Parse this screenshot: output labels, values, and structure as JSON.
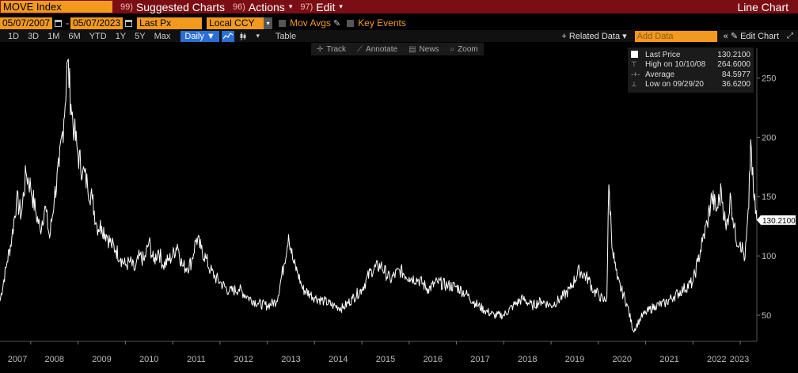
{
  "header": {
    "ticker": "MOVE Index",
    "buttons": [
      {
        "num": "99)",
        "label": "Suggested Charts",
        "caret": ""
      },
      {
        "num": "96)",
        "label": "Actions",
        "caret": "▾"
      },
      {
        "num": "97)",
        "label": "Edit",
        "caret": "▾"
      }
    ],
    "title": "Line Chart"
  },
  "controls": {
    "start_date": "05/07/2007",
    "end_date": "05/07/2023",
    "field": "Last Px",
    "currency": "Local CCY",
    "mov_avgs": "Mov Avgs",
    "key_events": "Key Events"
  },
  "toolbar": {
    "periods": [
      "1D",
      "3D",
      "1M",
      "6M",
      "YTD",
      "1Y",
      "5Y",
      "Max"
    ],
    "frequency": "Daily ▼",
    "table": "Table",
    "related": "+ Related Data ▾",
    "add_data_placeholder": "Add Data",
    "edit_chart": "« ✎ Edit Chart",
    "expand": "⤢"
  },
  "tools": [
    "Track",
    "Annotate",
    "News",
    "Zoom"
  ],
  "legend": {
    "rows": [
      {
        "label": "Last Price",
        "value": "130.2100"
      },
      {
        "label": "High on 10/10/08",
        "value": "264.6000"
      },
      {
        "label": "Average",
        "value": "84.5977"
      },
      {
        "label": "Low on 09/29/20",
        "value": "36.6200"
      }
    ]
  },
  "colors": {
    "line": "#ffffff",
    "accent": "#f39a1e",
    "header": "#7a0e14",
    "selected": "#2b6fd6"
  },
  "chart_data": {
    "type": "line",
    "series": [
      {
        "name": "Last Price",
        "x": [
          2007.35,
          2007.5,
          2007.6,
          2007.7,
          2007.8,
          2007.9,
          2008.0,
          2008.1,
          2008.2,
          2008.3,
          2008.4,
          2008.5,
          2008.6,
          2008.7,
          2008.78,
          2008.85,
          2008.92,
          2009.0,
          2009.1,
          2009.2,
          2009.3,
          2009.4,
          2009.5,
          2009.6,
          2009.7,
          2009.8,
          2009.9,
          2010.0,
          2010.1,
          2010.2,
          2010.3,
          2010.4,
          2010.5,
          2010.6,
          2010.7,
          2010.8,
          2010.9,
          2011.0,
          2011.1,
          2011.2,
          2011.3,
          2011.4,
          2011.5,
          2011.6,
          2011.7,
          2011.8,
          2011.9,
          2012.0,
          2012.2,
          2012.4,
          2012.6,
          2012.8,
          2013.0,
          2013.2,
          2013.35,
          2013.45,
          2013.55,
          2013.65,
          2013.75,
          2013.9,
          2014.0,
          2014.2,
          2014.4,
          2014.6,
          2014.8,
          2015.0,
          2015.2,
          2015.4,
          2015.6,
          2015.8,
          2016.0,
          2016.2,
          2016.4,
          2016.6,
          2016.8,
          2017.0,
          2017.2,
          2017.4,
          2017.6,
          2017.8,
          2018.0,
          2018.2,
          2018.4,
          2018.6,
          2018.8,
          2019.0,
          2019.2,
          2019.4,
          2019.6,
          2019.8,
          2019.9,
          2020.0,
          2020.1,
          2020.18,
          2020.22,
          2020.3,
          2020.4,
          2020.6,
          2020.74,
          2020.9,
          2021.0,
          2021.2,
          2021.4,
          2021.6,
          2021.8,
          2022.0,
          2022.1,
          2022.2,
          2022.3,
          2022.4,
          2022.5,
          2022.6,
          2022.7,
          2022.8,
          2022.9,
          2023.0,
          2023.1,
          2023.18,
          2023.22,
          2023.28,
          2023.35
        ],
        "y": [
          62,
          95,
          115,
          148,
          135,
          170,
          158,
          138,
          122,
          142,
          115,
          150,
          175,
          215,
          264.6,
          228,
          205,
          185,
          172,
          160,
          148,
          125,
          125,
          118,
          110,
          105,
          98,
          92,
          95,
          88,
          100,
          96,
          112,
          95,
          105,
          92,
          96,
          100,
          110,
          92,
          90,
          95,
          115,
          106,
          98,
          88,
          82,
          78,
          70,
          72,
          65,
          60,
          58,
          62,
          92,
          118,
          95,
          85,
          72,
          68,
          65,
          62,
          58,
          56,
          64,
          72,
          88,
          92,
          80,
          88,
          82,
          80,
          72,
          78,
          75,
          74,
          68,
          60,
          54,
          50,
          50,
          58,
          64,
          58,
          62,
          58,
          64,
          72,
          88,
          80,
          70,
          68,
          62,
          65,
          160,
          105,
          80,
          60,
          36.62,
          48,
          52,
          58,
          60,
          66,
          72,
          78,
          95,
          112,
          128,
          150,
          138,
          155,
          122,
          150,
          115,
          112,
          98,
          140,
          198,
          152,
          130.21
        ]
      }
    ],
    "x_ticks": [
      "2007",
      "2008",
      "2009",
      "2010",
      "2011",
      "2012",
      "2013",
      "2014",
      "2015",
      "2016",
      "2017",
      "2018",
      "2019",
      "2020",
      "2021",
      "2022",
      "2023"
    ],
    "y_ticks": [
      50,
      100,
      150,
      200,
      250
    ],
    "ylim": [
      28,
      275
    ],
    "xlim": [
      2007.35,
      2023.35
    ],
    "last_value_label": "130.2100",
    "grid": false
  }
}
